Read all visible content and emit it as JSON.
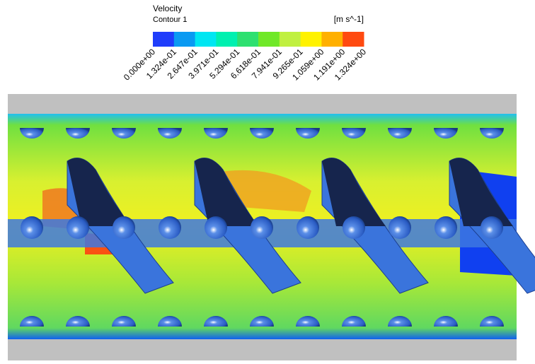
{
  "legend": {
    "title": "Velocity",
    "subtitle": "Contour 1",
    "units": "[m s^-1]",
    "labels": [
      "0.000e+00",
      "1.324e-01",
      "2.647e-01",
      "3.971e-01",
      "5.294e-01",
      "6.618e-01",
      "7.941e-01",
      "9.265e-01",
      "1.059e+00",
      "1.191e+00",
      "1.324e+00"
    ],
    "colors": [
      "#1f3dfb",
      "#0a9af2",
      "#00e6f2",
      "#00f0b0",
      "#2ee070",
      "#70e828",
      "#c0f040",
      "#fff200",
      "#ffb000",
      "#ff4a10"
    ]
  }
}
